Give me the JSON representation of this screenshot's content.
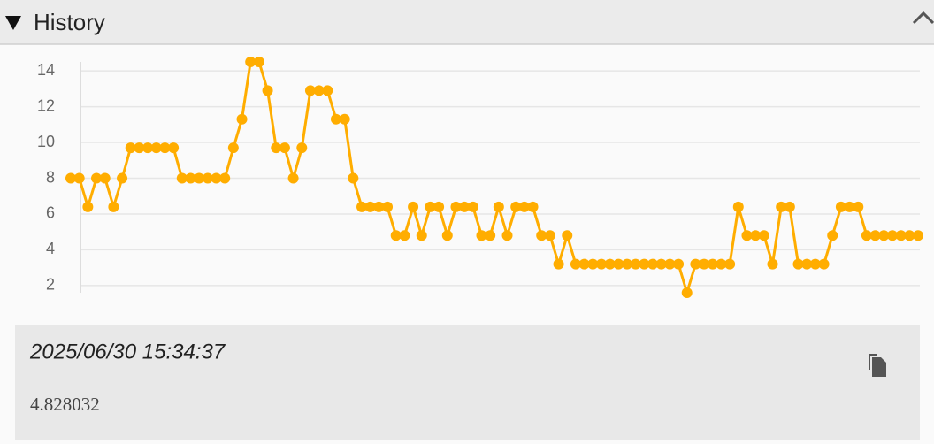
{
  "header": {
    "title": "History"
  },
  "chart_data": {
    "type": "line",
    "color": "#ffad00",
    "grid": true,
    "ylim": [
      1.5,
      14.5
    ],
    "yticks": [
      2,
      4,
      6,
      8,
      10,
      12,
      14
    ],
    "values": [
      8.0,
      8.0,
      6.4,
      8.0,
      8.0,
      6.4,
      8.0,
      9.7,
      9.7,
      9.7,
      9.7,
      9.7,
      9.7,
      8.0,
      8.0,
      8.0,
      8.0,
      8.0,
      8.0,
      9.7,
      11.3,
      14.5,
      14.5,
      12.9,
      9.7,
      9.7,
      8.0,
      9.7,
      12.9,
      12.9,
      12.9,
      11.3,
      11.3,
      8.0,
      6.4,
      6.4,
      6.4,
      6.4,
      4.8,
      4.8,
      6.4,
      4.8,
      6.4,
      6.4,
      4.8,
      6.4,
      6.4,
      6.4,
      4.8,
      4.8,
      6.4,
      4.8,
      6.4,
      6.4,
      6.4,
      4.8,
      4.8,
      3.2,
      4.8,
      3.2,
      3.2,
      3.2,
      3.2,
      3.2,
      3.2,
      3.2,
      3.2,
      3.2,
      3.2,
      3.2,
      3.2,
      3.2,
      1.6,
      3.2,
      3.2,
      3.2,
      3.2,
      3.2,
      6.4,
      4.8,
      4.8,
      4.8,
      3.2,
      6.4,
      6.4,
      3.2,
      3.2,
      3.2,
      3.2,
      4.8,
      6.4,
      6.4,
      6.4,
      4.8,
      4.8,
      4.8,
      4.8,
      4.8,
      4.8,
      4.8
    ]
  },
  "detail": {
    "timestamp": "2025/06/30 15:34:37",
    "value": "4.828032"
  }
}
